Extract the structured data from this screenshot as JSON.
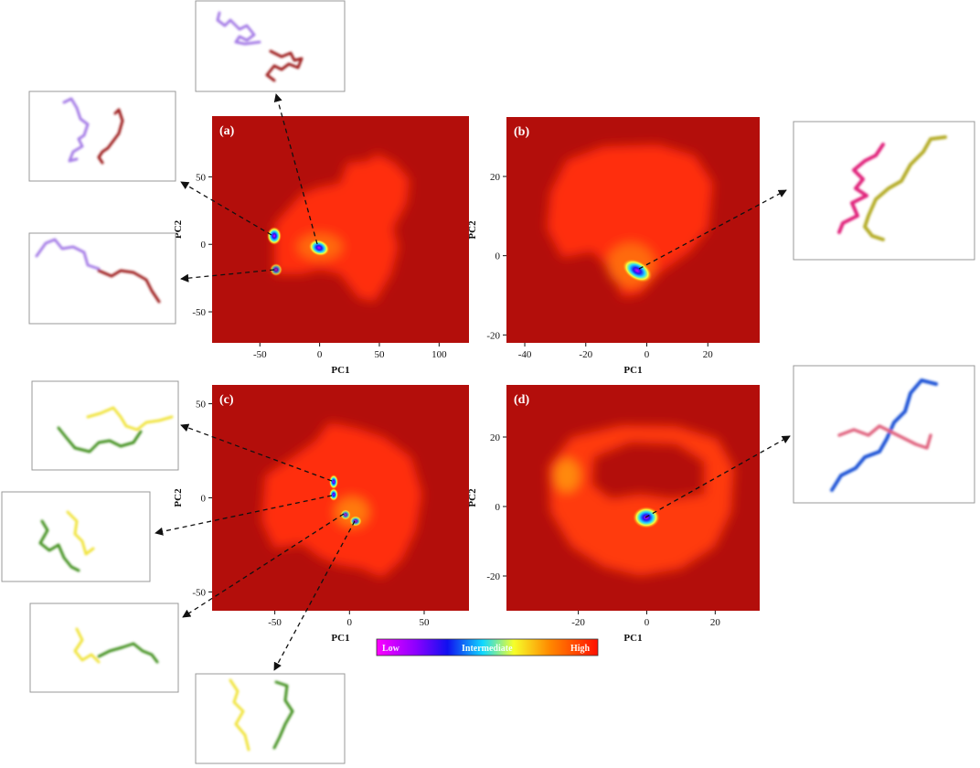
{
  "colorbar": {
    "low": "Low",
    "mid": "Intermediate",
    "high": "High"
  },
  "colors": {
    "background_red": "#b30e0b",
    "chain_purple": "#a47be6",
    "chain_darkred": "#9d1f1f",
    "chain_pink": "#e0247a",
    "chain_olive": "#b5ad2a",
    "chain_green": "#3f8f1f",
    "chain_yellow": "#f0e33a",
    "chain_blue": "#1e53d6",
    "chain_salmon": "#e0637f"
  },
  "chart_data": [
    {
      "panel": "(a)",
      "type": "heatmap",
      "xlabel": "PC1",
      "ylabel": "PC2",
      "xlim": [
        -90,
        125
      ],
      "ylim": [
        -73,
        95
      ],
      "xticks": [
        -50,
        0,
        50,
        100
      ],
      "yticks": [
        -50,
        0,
        50
      ],
      "low_energy_minima": [
        [
          -40,
          7
        ],
        [
          0,
          -4
        ],
        [
          -39,
          -20
        ]
      ]
    },
    {
      "panel": "(b)",
      "type": "heatmap",
      "xlabel": "PC1",
      "ylabel": "PC2",
      "xlim": [
        -46,
        37
      ],
      "ylim": [
        -22,
        35
      ],
      "xticks": [
        -40,
        -20,
        0,
        20
      ],
      "yticks": [
        -20,
        0,
        20
      ],
      "low_energy_minima": [
        [
          -2,
          -4
        ]
      ]
    },
    {
      "panel": "(c)",
      "type": "heatmap",
      "xlabel": "PC1",
      "ylabel": "PC2",
      "xlim": [
        -92,
        80
      ],
      "ylim": [
        -60,
        60
      ],
      "xticks": [
        -50,
        0,
        50
      ],
      "yticks": [
        -50,
        0,
        50
      ],
      "low_energy_minima": [
        [
          -10,
          9
        ],
        [
          -10,
          2
        ],
        [
          -2,
          -7
        ],
        [
          3,
          -9
        ]
      ]
    },
    {
      "panel": "(d)",
      "type": "heatmap",
      "xlabel": "PC1",
      "ylabel": "PC2",
      "xlim": [
        -41,
        33
      ],
      "ylim": [
        -30,
        35
      ],
      "xticks": [
        -20,
        0,
        20
      ],
      "yticks": [
        -20,
        0,
        20
      ],
      "low_energy_minima": [
        [
          0,
          -4
        ]
      ]
    }
  ]
}
